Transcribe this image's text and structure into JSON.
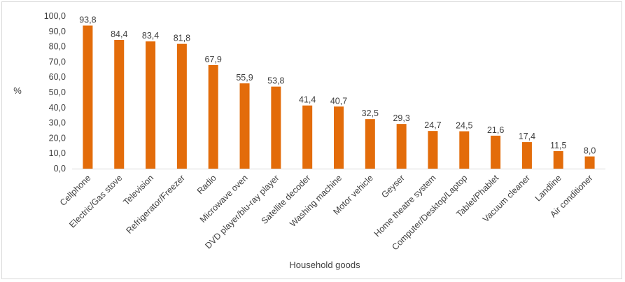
{
  "chart_data": {
    "type": "bar",
    "title": "",
    "xlabel": "Household goods",
    "ylabel": "%",
    "ylim": [
      0,
      100
    ],
    "y_ticks": [
      "0,0",
      "10,0",
      "20,0",
      "30,0",
      "40,0",
      "50,0",
      "60,0",
      "70,0",
      "80,0",
      "90,0",
      "100,0"
    ],
    "grid": false,
    "legend": "none",
    "bar_color": "#E36C0A",
    "categories": [
      "Cellphone",
      "Electric/Gas stove",
      "Television",
      "Refrigerator/Freezer",
      "Radio",
      "Microwave oven",
      "DVD player/blu-ray player",
      "Satellite decoder",
      "Washing machine",
      "Motor vehicle",
      "Geyser",
      "Home theatre system",
      "Computer/Desktop/Laptop",
      "Tablet/Phablet",
      "Vacuum cleaner",
      "Landline",
      "Air conditioner"
    ],
    "values": [
      93.8,
      84.4,
      83.4,
      81.8,
      67.9,
      55.9,
      53.8,
      41.4,
      40.7,
      32.5,
      29.3,
      24.7,
      24.5,
      21.6,
      17.4,
      11.5,
      8.0
    ],
    "value_labels": [
      "93,8",
      "84,4",
      "83,4",
      "81,8",
      "67,9",
      "55,9",
      "53,8",
      "41,4",
      "40,7",
      "32,5",
      "29,3",
      "24,7",
      "24,5",
      "21,6",
      "17,4",
      "11,5",
      "8,0"
    ]
  }
}
